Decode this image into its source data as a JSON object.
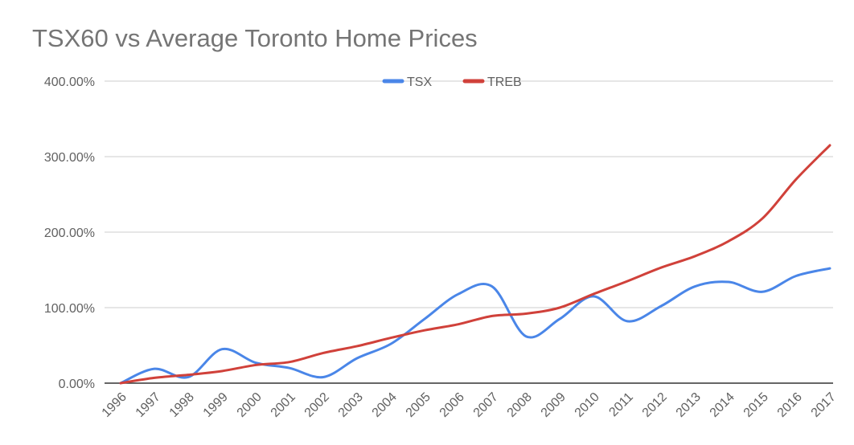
{
  "chart_data": {
    "type": "line",
    "title": "TSX60 vs Average Toronto Home Prices",
    "xlabel": "",
    "ylabel": "",
    "x": [
      "1996",
      "1997",
      "1998",
      "1999",
      "2000",
      "2001",
      "2002",
      "2003",
      "2004",
      "2005",
      "2006",
      "2007",
      "2008",
      "2009",
      "2010",
      "2011",
      "2012",
      "2013",
      "2014",
      "2015",
      "2016",
      "2017"
    ],
    "series": [
      {
        "name": "TSX",
        "color": "#4a86e8",
        "values": [
          0,
          19,
          8,
          45,
          27,
          20,
          8,
          33,
          52,
          85,
          118,
          128,
          62,
          85,
          115,
          82,
          102,
          128,
          134,
          121,
          142,
          152
        ]
      },
      {
        "name": "TREB",
        "color": "#d0413a",
        "values": [
          0,
          7,
          11,
          16,
          24,
          28,
          40,
          49,
          60,
          70,
          78,
          89,
          92,
          100,
          118,
          135,
          153,
          168,
          188,
          218,
          270,
          315
        ]
      }
    ],
    "yticks": [
      "0.00%",
      "100.00%",
      "200.00%",
      "300.00%",
      "400.00%"
    ],
    "ylim": [
      0,
      400
    ],
    "grid": true,
    "legend_position": "top-center"
  }
}
